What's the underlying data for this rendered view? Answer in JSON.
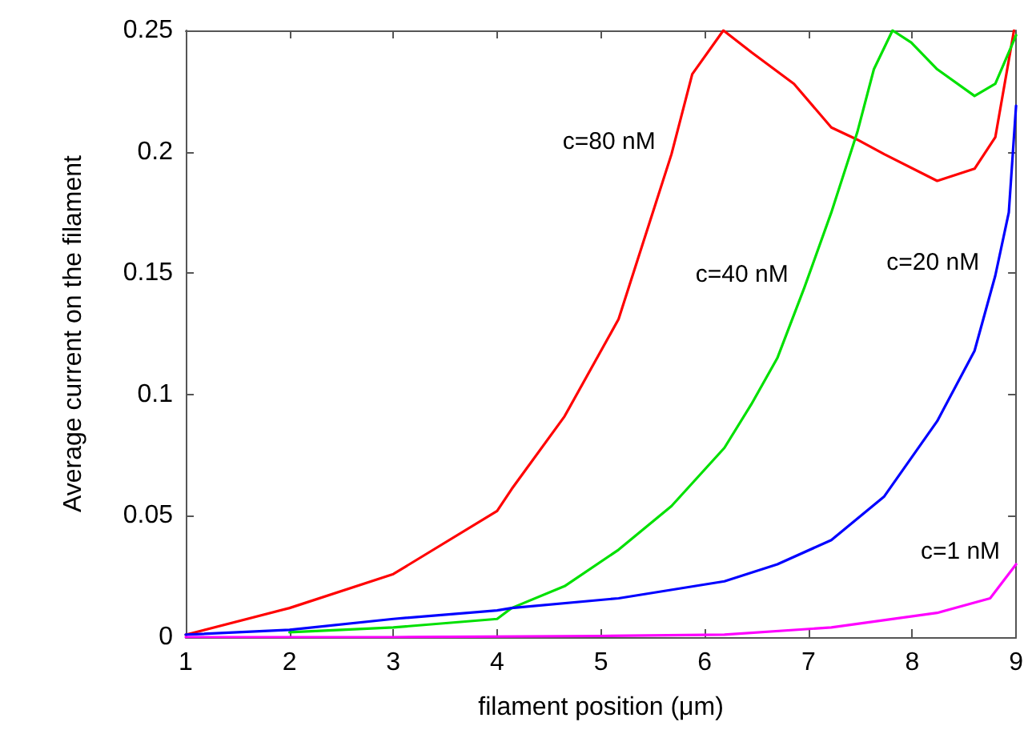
{
  "chart_data": {
    "type": "line",
    "xlabel": "filament position (μm)",
    "ylabel": "Average current on the filament",
    "xlim": [
      1,
      9
    ],
    "xticks": [
      1,
      2,
      3,
      4,
      5,
      6,
      7,
      8,
      9
    ],
    "ylim": [
      0,
      0.25
    ],
    "yticks": [
      0,
      0.05,
      0.1,
      0.15,
      0.2,
      0.25
    ],
    "grid": false,
    "marker": "none",
    "line_style": "solid",
    "series": [
      {
        "name": "c=80 nM",
        "color": "#ff0000",
        "x": [
          1,
          2,
          3,
          4,
          4.14,
          4.65,
          5.17,
          5.68,
          5.88,
          6.18,
          6.45,
          6.86,
          7.22,
          7.47,
          7.73,
          8.24,
          8.6,
          8.8,
          8.98
        ],
        "values": [
          0.001,
          0.012,
          0.026,
          0.052,
          0.061,
          0.091,
          0.131,
          0.199,
          0.232,
          0.25,
          0.241,
          0.228,
          0.21,
          0.205,
          0.199,
          0.188,
          0.193,
          0.206,
          0.25
        ]
      },
      {
        "name": "c=40 nM",
        "color": "#00e000",
        "x": [
          2,
          3,
          4,
          4.14,
          4.65,
          5.17,
          5.68,
          6.19,
          6.45,
          6.7,
          6.96,
          7.22,
          7.47,
          7.63,
          7.81,
          7.99,
          8.24,
          8.6,
          8.8,
          9
        ],
        "values": [
          0.002,
          0.004,
          0.0075,
          0.012,
          0.021,
          0.036,
          0.054,
          0.078,
          0.096,
          0.115,
          0.144,
          0.175,
          0.208,
          0.234,
          0.25,
          0.245,
          0.234,
          0.223,
          0.228,
          0.248
        ]
      },
      {
        "name": "c=20 nM",
        "color": "#0000ff",
        "x": [
          1,
          2,
          3,
          4,
          4.14,
          5.17,
          6.19,
          6.7,
          7.22,
          7.73,
          8.24,
          8.6,
          8.8,
          8.93,
          9
        ],
        "values": [
          0.001,
          0.003,
          0.0075,
          0.011,
          0.012,
          0.016,
          0.023,
          0.03,
          0.04,
          0.058,
          0.089,
          0.118,
          0.149,
          0.175,
          0.219
        ]
      },
      {
        "name": "c=1 nM",
        "color": "#ff00ff",
        "x": [
          1,
          3,
          5,
          6.19,
          7.22,
          8.24,
          8.75,
          9
        ],
        "values": [
          0,
          0,
          0.0005,
          0.001,
          0.004,
          0.01,
          0.016,
          0.03
        ]
      }
    ]
  }
}
